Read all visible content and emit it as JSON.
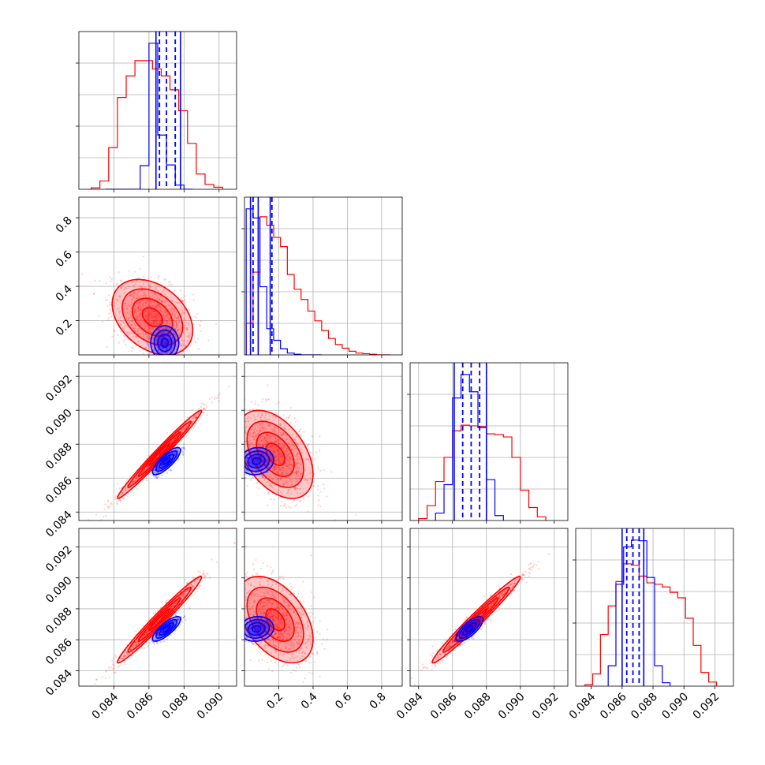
{
  "chart_data": {
    "type": "corner",
    "colors": {
      "red": "#ff0000",
      "blue": "#0000ff"
    },
    "grid": true,
    "parameters": [
      {
        "range": [
          0.082,
          0.091
        ],
        "ticks": [
          0.084,
          0.086,
          0.088,
          0.09
        ],
        "tick_labels": [
          "0.084",
          "0.086",
          "0.088",
          "0.090"
        ]
      },
      {
        "range": [
          0.0,
          0.92
        ],
        "ticks": [
          0.2,
          0.4,
          0.6,
          0.8
        ],
        "tick_labels": [
          "0.2",
          "0.4",
          "0.6",
          "0.8"
        ]
      },
      {
        "range": [
          0.0835,
          0.0928
        ],
        "ticks": [
          0.084,
          0.086,
          0.088,
          0.09,
          0.092
        ],
        "tick_labels": [
          "0.084",
          "0.086",
          "0.088",
          "0.090",
          "0.092"
        ]
      },
      {
        "range": [
          0.083,
          0.0932
        ],
        "ticks": [
          0.084,
          0.086,
          0.088,
          0.09,
          0.092
        ],
        "tick_labels": [
          "0.084",
          "0.086",
          "0.088",
          "0.090",
          "0.092"
        ]
      }
    ],
    "diagonal": [
      {
        "red_hist": {
          "edges": [
            0.0827,
            0.0832,
            0.0837,
            0.0842,
            0.0847,
            0.0852,
            0.0857,
            0.0862,
            0.0867,
            0.0872,
            0.0877,
            0.0882,
            0.0887,
            0.0892,
            0.0897,
            0.0902
          ],
          "counts": [
            2,
            12,
            60,
            132,
            163,
            185,
            185,
            173,
            163,
            143,
            113,
            66,
            22,
            7,
            3
          ]
        },
        "blue_hist": {
          "edges": [
            0.0835,
            0.084,
            0.0845,
            0.085,
            0.0855,
            0.086,
            0.0865,
            0.087,
            0.0875,
            0.088,
            0.0885
          ],
          "counts": [
            0,
            0,
            0,
            0,
            34,
            210,
            78,
            35,
            6,
            0
          ]
        },
        "quantile_lines": [
          0.0866,
          0.087,
          0.0875
        ],
        "solid_lines": [
          0.0864,
          0.0878
        ]
      },
      {
        "red_hist": {
          "edges": [
            0.01,
            0.05,
            0.09,
            0.13,
            0.17,
            0.21,
            0.25,
            0.29,
            0.33,
            0.37,
            0.41,
            0.45,
            0.49,
            0.53,
            0.57,
            0.61,
            0.65,
            0.69,
            0.73,
            0.77,
            0.81,
            0.85
          ],
          "counts": [
            52,
            136,
            227,
            213,
            193,
            178,
            132,
            108,
            91,
            72,
            56,
            40,
            27,
            17,
            11,
            6,
            3,
            2,
            1,
            0,
            0
          ]
        },
        "blue_hist": {
          "edges": [
            0.01,
            0.05,
            0.09,
            0.13,
            0.17,
            0.21,
            0.25,
            0.29,
            0.33,
            0.37,
            0.41,
            0.45
          ],
          "counts": [
            240,
            225,
            112,
            43,
            24,
            10,
            3,
            1,
            0,
            0,
            0
          ]
        },
        "quantile_lines": [
          0.05,
          0.16
        ],
        "solid_lines": [
          0.035,
          0.08,
          0.15
        ]
      },
      {
        "red_hist": {
          "edges": [
            0.084,
            0.0845,
            0.085,
            0.0855,
            0.086,
            0.0865,
            0.087,
            0.0875,
            0.088,
            0.0885,
            0.089,
            0.0895,
            0.09,
            0.0905,
            0.091,
            0.0915
          ],
          "counts": [
            3,
            24,
            63,
            102,
            145,
            154,
            153,
            152,
            140,
            139,
            135,
            102,
            49,
            21,
            6
          ]
        },
        "blue_hist": {
          "edges": [
            0.085,
            0.0855,
            0.086,
            0.0865,
            0.087,
            0.0875,
            0.088,
            0.0885,
            0.089
          ],
          "counts": [
            12,
            58,
            198,
            236,
            208,
            150,
            66,
            8
          ]
        },
        "quantile_lines": [
          0.0866,
          0.0871,
          0.0876
        ],
        "solid_lines": [
          0.0861,
          0.088
        ]
      },
      {
        "red_hist": {
          "edges": [
            0.0836,
            0.0841,
            0.0846,
            0.0851,
            0.0856,
            0.0861,
            0.0866,
            0.0871,
            0.0876,
            0.0881,
            0.0886,
            0.0891,
            0.0896,
            0.0901,
            0.0906,
            0.0911,
            0.0916,
            0.0921
          ],
          "counts": [
            2,
            18,
            76,
            118,
            154,
            180,
            178,
            162,
            152,
            150,
            146,
            138,
            130,
            100,
            60,
            20,
            6
          ]
        },
        "blue_hist": {
          "edges": [
            0.0851,
            0.0856,
            0.0861,
            0.0866,
            0.0871,
            0.0876,
            0.0881,
            0.0886,
            0.0891
          ],
          "counts": [
            30,
            150,
            205,
            215,
            214,
            160,
            30,
            5
          ]
        },
        "quantile_lines": [
          0.0863,
          0.0867,
          0.0871
        ],
        "solid_lines": [
          0.086,
          0.0874
        ]
      }
    ],
    "pairs": [
      {
        "row": 1,
        "col": 0,
        "red": {
          "center": [
            0.0862,
            0.22
          ],
          "sd": [
            0.00115,
            0.11
          ],
          "rho": -0.35
        },
        "blue": {
          "center": [
            0.0869,
            0.07
          ],
          "sd": [
            0.0004,
            0.05
          ],
          "rho": 0.0
        }
      },
      {
        "row": 2,
        "col": 0,
        "red": {
          "center": [
            0.0866,
            0.0874
          ],
          "sd": [
            0.0012,
            0.0013
          ],
          "rho": 0.985
        },
        "blue": {
          "center": [
            0.087,
            0.087
          ],
          "sd": [
            0.0004,
            0.0004
          ],
          "rho": 0.8
        }
      },
      {
        "row": 2,
        "col": 1,
        "red": {
          "center": [
            0.18,
            0.0874
          ],
          "sd": [
            0.11,
            0.0013
          ],
          "rho": -0.45
        },
        "blue": {
          "center": [
            0.07,
            0.087
          ],
          "sd": [
            0.05,
            0.0004
          ],
          "rho": 0.1
        }
      },
      {
        "row": 3,
        "col": 0,
        "red": {
          "center": [
            0.0866,
            0.0873
          ],
          "sd": [
            0.0012,
            0.0014
          ],
          "rho": 0.98
        },
        "blue": {
          "center": [
            0.087,
            0.0867
          ],
          "sd": [
            0.0004,
            0.0004
          ],
          "rho": 0.8
        }
      },
      {
        "row": 3,
        "col": 1,
        "red": {
          "center": [
            0.18,
            0.0873
          ],
          "sd": [
            0.11,
            0.0014
          ],
          "rho": -0.45
        },
        "blue": {
          "center": [
            0.07,
            0.0867
          ],
          "sd": [
            0.05,
            0.0004
          ],
          "rho": 0.1
        }
      },
      {
        "row": 3,
        "col": 2,
        "red": {
          "center": [
            0.0874,
            0.0873
          ],
          "sd": [
            0.0013,
            0.0014
          ],
          "rho": 0.98
        },
        "blue": {
          "center": [
            0.087,
            0.0867
          ],
          "sd": [
            0.0004,
            0.0004
          ],
          "rho": 0.75
        }
      }
    ]
  }
}
